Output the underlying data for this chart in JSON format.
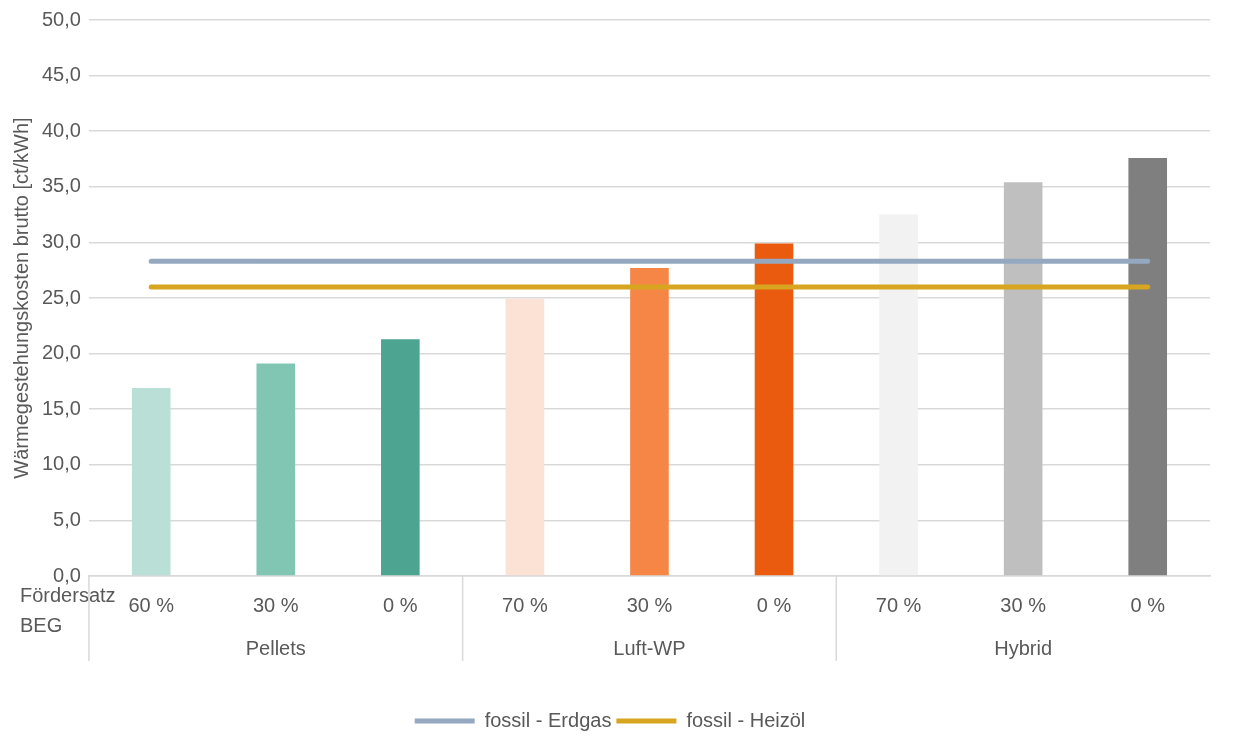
{
  "chart_data": {
    "type": "bar",
    "ylabel": "Wärmegestehungskosten brutto [ct/kWh]",
    "categories": [
      "60 %",
      "30 %",
      "0 %",
      "70 %",
      "30 %",
      "0 %",
      "70 %",
      "30 %",
      "0 %"
    ],
    "series": [
      {
        "colors": [
          "#b9dfd6",
          "#80c6b2",
          "#4da591",
          "#fbe2d5",
          "#f58646",
          "#ea5b0f",
          "#f2f2f2",
          "#bfbfbf",
          "#7f7f7f"
        ],
        "values": [
          16.9,
          19.1,
          21.3,
          24.9,
          27.7,
          29.9,
          32.5,
          35.4,
          37.6
        ]
      },
      {
        "type": "line",
        "name": "fossil - Erdgas",
        "color": "#94a8c0",
        "values": [
          28.3,
          28.3,
          28.3,
          28.3,
          28.3,
          28.3,
          28.3,
          28.3,
          28.3
        ]
      },
      {
        "type": "line",
        "name": "fossil - Heizöl",
        "color": "#d8a521",
        "values": [
          26.0,
          26.0,
          26.0,
          26.0,
          26.0,
          26.0,
          26.0,
          26.0,
          26.0
        ]
      }
    ],
    "ylim": [
      0,
      50
    ],
    "yticks": [
      {
        "value": 0,
        "label": "0,0"
      },
      {
        "value": 5,
        "label": "5,0"
      },
      {
        "value": 10,
        "label": "10,0"
      },
      {
        "value": 15,
        "label": "15,0"
      },
      {
        "value": 20,
        "label": "20,0"
      },
      {
        "value": 25,
        "label": "25,0"
      },
      {
        "value": 30,
        "label": "30,0"
      },
      {
        "value": 35,
        "label": "35,0"
      },
      {
        "value": 40,
        "label": "40,0"
      },
      {
        "value": 45,
        "label": "45,0"
      },
      {
        "value": 50,
        "label": "50,0"
      }
    ],
    "grid": "y",
    "legend": "bottom",
    "marker": "none",
    "annotations": [
      "Fördersatz BEG",
      "Pellets",
      "Luft-WP",
      "Hybrid"
    ]
  }
}
